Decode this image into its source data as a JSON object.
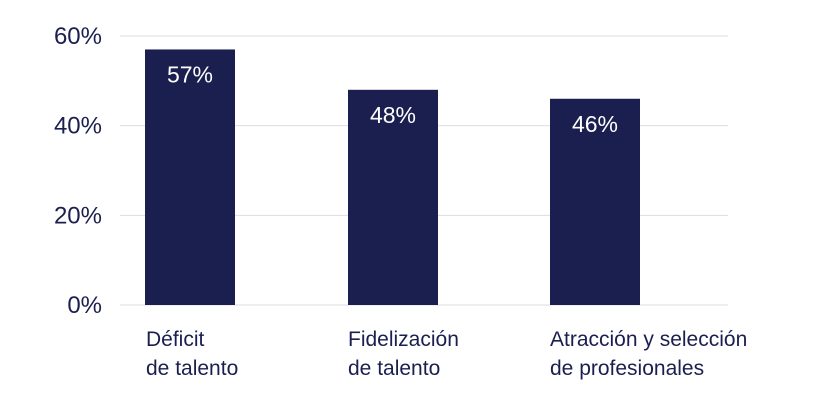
{
  "chart_data": {
    "type": "bar",
    "categories": [
      [
        "Déficit",
        "de talento"
      ],
      [
        "Fidelización",
        "de talento"
      ],
      [
        "Atracción y selección",
        "de profesionales"
      ]
    ],
    "values": [
      57,
      48,
      46
    ],
    "data_labels": [
      "57%",
      "48%",
      "46%"
    ],
    "y_ticks": [
      0,
      20,
      40,
      60
    ],
    "y_tick_labels": [
      "0%",
      "20%",
      "40%",
      "60%"
    ],
    "ylim": [
      0,
      60
    ],
    "grid": true,
    "legend": "none"
  },
  "colors": {
    "bar": "#1b1f4f",
    "grid": "#dcdde3",
    "text": "#1b1f4f",
    "data_label": "#ffffff"
  }
}
